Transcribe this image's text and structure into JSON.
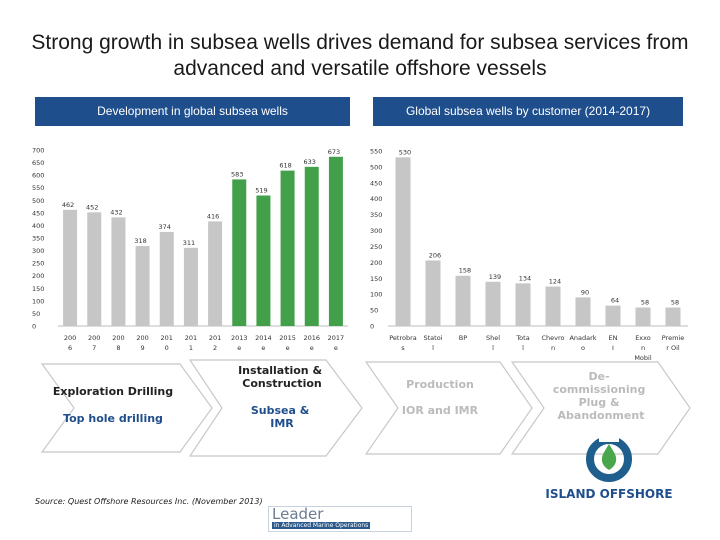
{
  "page": {
    "title": "Strong growth in subsea wells drives demand for subsea services from advanced and versatile offshore vessels"
  },
  "headers": {
    "left": "Development in global subsea wells",
    "right": "Global subsea wells by customer (2014-2017)"
  },
  "chart_data": [
    {
      "type": "bar",
      "title": "Development in global subsea wells",
      "categories": [
        "2006",
        "2007",
        "2008",
        "2009",
        "2010",
        "2011",
        "2012",
        "2013e",
        "2014e",
        "2015e",
        "2016e",
        "2017e"
      ],
      "values": [
        462,
        452,
        432,
        318,
        374,
        311,
        416,
        583,
        519,
        618,
        633,
        673
      ],
      "ylim": [
        0,
        700
      ],
      "yticks": [
        0,
        50,
        100,
        150,
        200,
        250,
        300,
        350,
        400,
        450,
        500,
        550,
        600,
        650,
        700
      ],
      "highlight_from_index": 7,
      "colors": {
        "historic": "#c6c6c6",
        "forecast": "#43a04a"
      }
    },
    {
      "type": "bar",
      "title": "Global subsea wells by customer (2014-2017)",
      "categories": [
        "Petrobras",
        "Statoil",
        "BP",
        "Shell",
        "Total",
        "Chevron",
        "Anadarko",
        "ENI",
        "Exxon Mobil",
        "Premier Oil"
      ],
      "values": [
        530,
        206,
        158,
        139,
        134,
        124,
        90,
        64,
        58,
        58
      ],
      "ylim": [
        0,
        550
      ],
      "yticks": [
        0,
        50,
        100,
        150,
        200,
        250,
        300,
        350,
        400,
        450,
        500,
        550
      ],
      "colors": {
        "bar": "#c6c6c6"
      }
    }
  ],
  "left_chart": {
    "tick_labels": [
      [
        "200",
        "6"
      ],
      [
        "200",
        "7"
      ],
      [
        "200",
        "8"
      ],
      [
        "200",
        "9"
      ],
      [
        "201",
        "0"
      ],
      [
        "201",
        "1"
      ],
      [
        "201",
        "2"
      ],
      [
        "2013",
        "e"
      ],
      [
        "2014",
        "e"
      ],
      [
        "2015",
        "e"
      ],
      [
        "2016",
        "e"
      ],
      [
        "2017",
        "e"
      ]
    ],
    "value_labels": [
      "462",
      "452",
      "432",
      "318",
      "374",
      "311",
      "416",
      "583",
      "519",
      "618",
      "633",
      "673"
    ]
  },
  "right_chart": {
    "tick_labels": [
      [
        "Petrobra",
        "s"
      ],
      [
        "Statoi",
        "l"
      ],
      [
        "BP",
        ""
      ],
      [
        "Shel",
        "l"
      ],
      [
        "Tota",
        "l"
      ],
      [
        "Chevro",
        "n"
      ],
      [
        "Anadark",
        "o"
      ],
      [
        "EN",
        "I"
      ],
      [
        "Exxo",
        "n",
        "Mobil"
      ],
      [
        "Premie",
        "r Oil"
      ]
    ],
    "value_labels": [
      "530",
      "206",
      "158",
      "139",
      "134",
      "124",
      "90",
      "64",
      "58",
      "58"
    ]
  },
  "arrows": {
    "left": {
      "item1": "Exploration Drilling",
      "item2": "Top hole drilling"
    },
    "middle": {
      "item1": "Installation & Construction",
      "item2": "Subsea & IMR"
    },
    "right": {
      "item1": "Production",
      "item2": "IOR and IMR"
    },
    "far_right": {
      "item1": "De-commissioning Plug & Abandonment"
    }
  },
  "logos": {
    "island_offshore": "ISLAND OFFSHORE",
    "leader_word": "Leader",
    "leader_tagline": "in Advanced Marine Operations"
  },
  "source": "Source: Quest Offshore Resources Inc. (November 2013)"
}
